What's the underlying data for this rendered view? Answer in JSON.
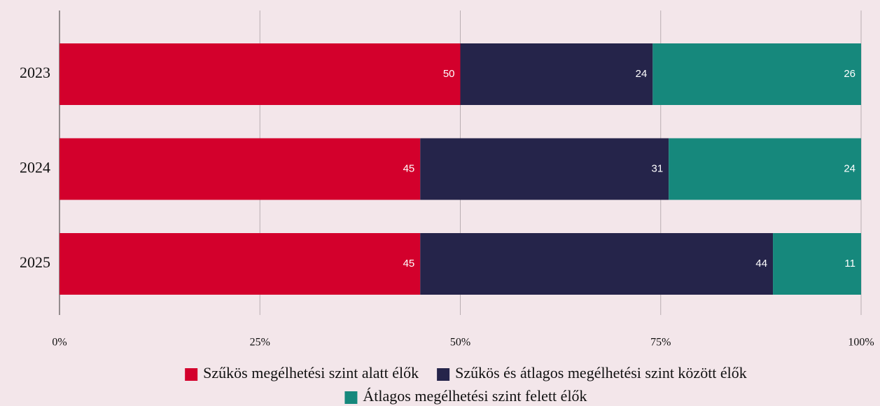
{
  "chart_data": {
    "type": "bar",
    "orientation": "horizontal",
    "stacked": true,
    "categories": [
      "2023",
      "2024",
      "2025"
    ],
    "series": [
      {
        "name": "Szűkös megélhetési szint alatt élők",
        "color": "#d3002c",
        "values": [
          50,
          45,
          45
        ]
      },
      {
        "name": "Szűkös és átlagos megélhetési szint között élők",
        "color": "#25244a",
        "values": [
          24,
          31,
          44
        ]
      },
      {
        "name": "Átlagos megélhetési szint felett élők",
        "color": "#16887c",
        "values": [
          26,
          24,
          11
        ]
      }
    ],
    "xlim": [
      0,
      100
    ],
    "xticks": [
      {
        "value": 0,
        "label": "0%"
      },
      {
        "value": 25,
        "label": "25%"
      },
      {
        "value": 50,
        "label": "50%"
      },
      {
        "value": 75,
        "label": "75%"
      },
      {
        "value": 100,
        "label": "100%"
      }
    ],
    "grid": true
  }
}
